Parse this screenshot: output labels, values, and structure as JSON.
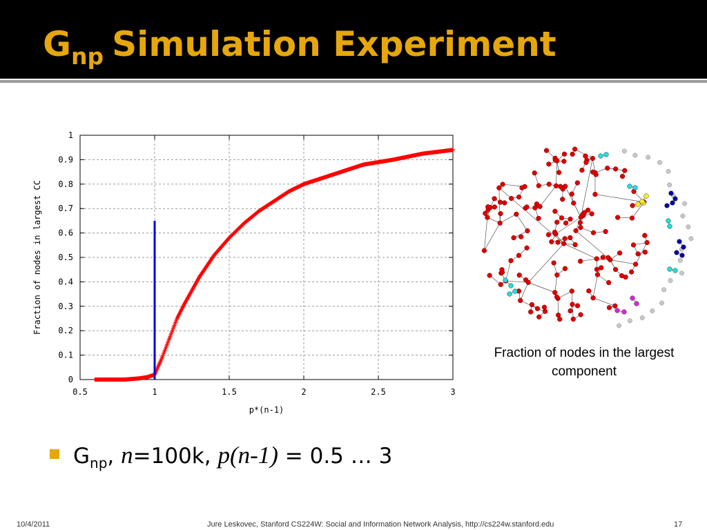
{
  "slide": {
    "title_main": "G",
    "title_sub": "np",
    "title_rest": "Simulation Experiment",
    "caption": "Fraction of nodes in the largest component",
    "bullet": {
      "g": "G",
      "np": "np",
      "comma1": ",",
      "n": "n",
      "n_value": "=100k,",
      "p_expr": "p(n-1)",
      "range": "= 0.5 … 3"
    },
    "footer": {
      "date": "10/4/2011",
      "center": "Jure Leskovec, Stanford CS224W: Social and Information Network Analysis, http://cs224w.stanford.edu",
      "page": "17"
    },
    "colors": {
      "title": "#e6a70c",
      "bullet": "#e6a70c",
      "curve": "#ff0000",
      "threshold": "#0000dd"
    }
  },
  "chart_data": {
    "type": "line",
    "title": "",
    "xlabel": "p*(n-1)",
    "ylabel": "Fraction of nodes in largest CC",
    "xlim": [
      0.5,
      3
    ],
    "ylim": [
      0,
      1
    ],
    "xticks": [
      "0.5",
      "1",
      "1.5",
      "2",
      "2.5",
      "3"
    ],
    "yticks": [
      "0",
      "0.1",
      "0.2",
      "0.3",
      "0.4",
      "0.5",
      "0.6",
      "0.7",
      "0.8",
      "0.9",
      "1"
    ],
    "grid": true,
    "legend": "none",
    "series": [
      {
        "color": "#ff0000",
        "marker": "plus",
        "x": [
          0.6,
          0.7,
          0.8,
          0.9,
          0.95,
          1.0,
          1.05,
          1.1,
          1.15,
          1.2,
          1.3,
          1.4,
          1.5,
          1.6,
          1.7,
          1.8,
          1.9,
          2.0,
          2.2,
          2.4,
          2.6,
          2.8,
          3.0
        ],
        "y": [
          0.0,
          0.0,
          0.0,
          0.005,
          0.01,
          0.02,
          0.09,
          0.17,
          0.25,
          0.31,
          0.42,
          0.51,
          0.58,
          0.64,
          0.69,
          0.73,
          0.77,
          0.8,
          0.84,
          0.88,
          0.9,
          0.925,
          0.94
        ]
      },
      {
        "color": "#0000dd",
        "x": [
          1.0,
          1.0
        ],
        "y": [
          0.0,
          0.65
        ]
      }
    ]
  },
  "graph": {
    "node_colors": {
      "giant": "#dd0000",
      "isolated": "#c8c8c8",
      "small_a": "#22dddd",
      "small_b": "#ffee22",
      "small_c": "#0000aa",
      "small_d": "#dd22dd"
    }
  }
}
